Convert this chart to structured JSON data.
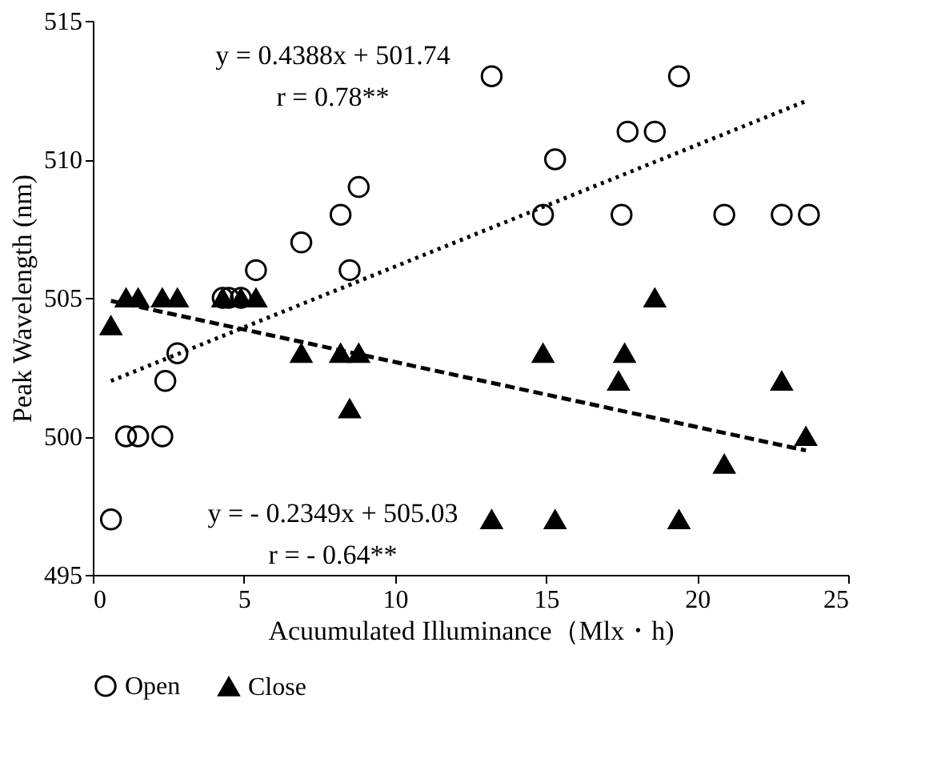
{
  "chart_data": {
    "type": "scatter",
    "xlabel": "Acuumulated Illuminance（Mlx・h)",
    "ylabel": "Peak Wavelength (nm)",
    "xlim": [
      0,
      25
    ],
    "xticks": [
      0,
      5,
      10,
      15,
      20,
      25
    ],
    "ylim": [
      495,
      515
    ],
    "yticks": [
      495,
      500,
      505,
      510,
      515
    ],
    "grid": false,
    "legend": "bottom",
    "annotations": [
      "y = 0.4388x + 501.74",
      "r = 0.78**",
      "y = - 0.2349x + 505.03",
      "r = - 0.64**"
    ],
    "series": [
      {
        "name": "Open",
        "color": "#000000",
        "marker": "circle",
        "x": [
          0.6,
          1.1,
          1.5,
          2.3,
          2.4,
          2.8,
          4.3,
          4.5,
          4.9,
          5.4,
          6.9,
          8.2,
          8.5,
          8.8,
          13.2,
          14.9,
          15.3,
          17.5,
          17.7,
          18.6,
          19.4,
          20.9,
          22.8,
          23.7
        ],
        "values": [
          497,
          500,
          500,
          500,
          502,
          503,
          505,
          505,
          505,
          506,
          507,
          508,
          506,
          509,
          513,
          508,
          510,
          508,
          511,
          511,
          513,
          508,
          508,
          508
        ]
      },
      {
        "name": "Close",
        "color": "#000000",
        "marker": "triangle",
        "x": [
          0.6,
          1.1,
          1.5,
          2.3,
          2.8,
          4.3,
          4.9,
          5.4,
          6.9,
          8.2,
          8.5,
          8.8,
          13.2,
          14.9,
          15.3,
          17.4,
          17.6,
          18.6,
          19.4,
          20.9,
          22.8,
          23.6
        ],
        "values": [
          504,
          505,
          505,
          505,
          505,
          505,
          505,
          505,
          503,
          503,
          501,
          503,
          497,
          503,
          497,
          502,
          503,
          505,
          497,
          499,
          502,
          500
        ]
      },
      {
        "type": "line",
        "color": "#000000",
        "line_style": "dotted",
        "x": [
          0.6,
          23.6
        ],
        "values": [
          502.0,
          512.1
        ]
      },
      {
        "type": "line",
        "color": "#000000",
        "line_style": "dashed",
        "x": [
          0.6,
          23.6
        ],
        "values": [
          504.89,
          499.49
        ]
      }
    ]
  }
}
